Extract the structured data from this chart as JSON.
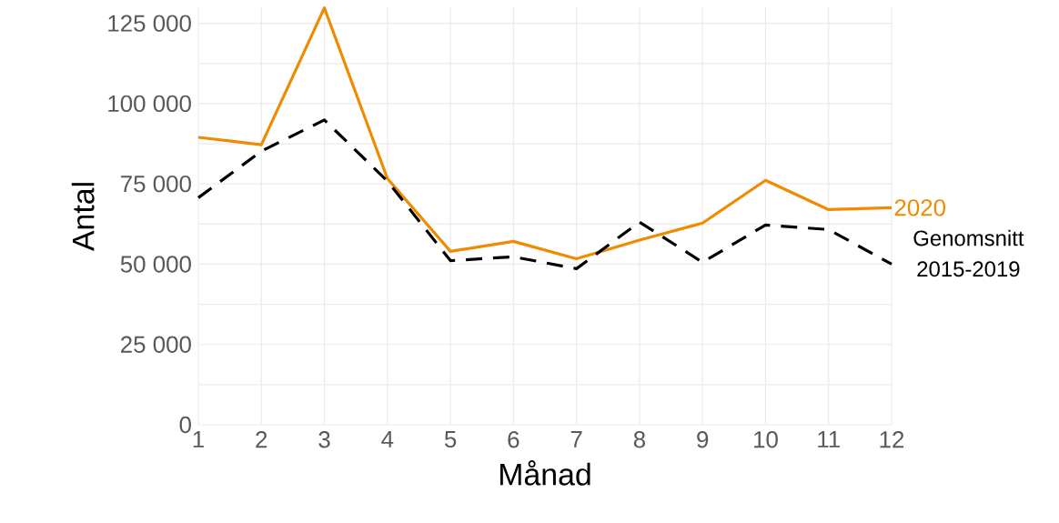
{
  "chart_data": {
    "type": "line",
    "xlabel": "Månad",
    "ylabel": "Antal",
    "x": [
      1,
      2,
      3,
      4,
      5,
      6,
      7,
      8,
      9,
      10,
      11,
      12
    ],
    "series": [
      {
        "name": "2020",
        "color": "#f08a00",
        "line_style": "solid",
        "values": [
          89500,
          87200,
          129800,
          76700,
          54000,
          57100,
          51700,
          57500,
          62800,
          76100,
          67000,
          67600
        ]
      },
      {
        "name": "Genomsnitt 2015-2019",
        "color": "#000000",
        "line_style": "dashed",
        "values": [
          70700,
          85200,
          94900,
          75900,
          51100,
          52300,
          48600,
          63100,
          50600,
          62200,
          60800,
          50000
        ]
      }
    ],
    "xlim": [
      1,
      12
    ],
    "ylim": [
      0,
      130000
    ],
    "xticks": [
      1,
      2,
      3,
      4,
      5,
      6,
      7,
      8,
      9,
      10,
      11,
      12
    ],
    "yticks": [
      {
        "value": 0,
        "label": "0"
      },
      {
        "value": 12500,
        "label": null
      },
      {
        "value": 25000,
        "label": "25 000"
      },
      {
        "value": 37500,
        "label": null
      },
      {
        "value": 50000,
        "label": "50 000"
      },
      {
        "value": 62500,
        "label": null
      },
      {
        "value": 75000,
        "label": "75 000"
      },
      {
        "value": 87500,
        "label": null
      },
      {
        "value": 100000,
        "label": "100 000"
      },
      {
        "value": 112500,
        "label": null
      },
      {
        "value": 125000,
        "label": "125 000"
      }
    ],
    "grid": true
  }
}
